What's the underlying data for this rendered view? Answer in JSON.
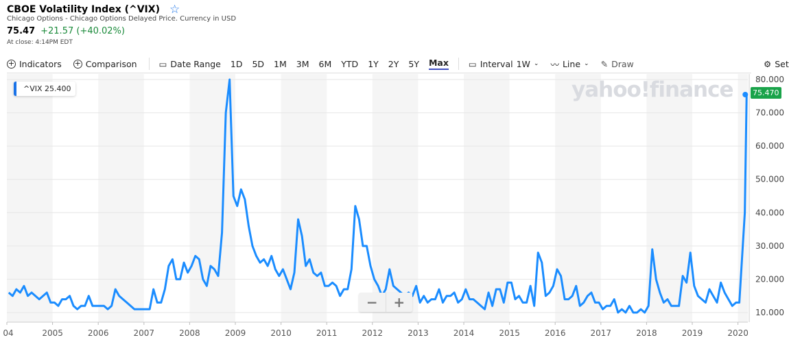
{
  "header": {
    "title": "CBOE Volatility Index (^VIX)",
    "subtitle": "Chicago Options - Chicago Options Delayed Price. Currency in USD",
    "price": "75.47",
    "change": "+21.57 (+40.02%)",
    "close_time": "At close: 4:14PM EDT"
  },
  "toolbar": {
    "indicators": "Indicators",
    "comparison": "Comparison",
    "date_range": "Date Range",
    "ranges": [
      "1D",
      "5D",
      "1M",
      "3M",
      "6M",
      "YTD",
      "1Y",
      "2Y",
      "5Y",
      "Max"
    ],
    "active_range": "Max",
    "interval_label": "Interval",
    "interval_value": "1W",
    "chart_type": "Line",
    "draw": "Draw",
    "settings": "Set"
  },
  "watermark": "yahoo!finance",
  "zoom": {
    "minus": "−",
    "plus": "+"
  },
  "colors": {
    "line": "#1a8cff",
    "up": "#1a8a3a",
    "badge": "#1aa34a",
    "shade": "#f5f5f5"
  },
  "chart_data": {
    "type": "line",
    "legend": "^VIX 25.400",
    "last_value_label": "75.470",
    "ylim": [
      10,
      80
    ],
    "yticks": [
      "10.000",
      "20.000",
      "30.000",
      "40.000",
      "50.000",
      "60.000",
      "70.000",
      "80.000"
    ],
    "xticks": [
      "04",
      "2005",
      "2006",
      "2007",
      "2008",
      "2009",
      "2010",
      "2011",
      "2012",
      "2013",
      "2014",
      "2015",
      "2016",
      "2017",
      "2018",
      "2019",
      "2020"
    ],
    "grid": true,
    "series": [
      {
        "values": {
          "2004": [
            16,
            15,
            17,
            16,
            18,
            15,
            16,
            15,
            14,
            15,
            16,
            13
          ],
          "2005": [
            13,
            12,
            14,
            14,
            15,
            12,
            11,
            12,
            12,
            15,
            12,
            12
          ],
          "2006": [
            12,
            12,
            11,
            12,
            17,
            15,
            14,
            13,
            12,
            11,
            11,
            11
          ],
          "2007": [
            11,
            11,
            17,
            13,
            13,
            17,
            24,
            26,
            20,
            20,
            25,
            22
          ],
          "2008": [
            24,
            27,
            26,
            20,
            18,
            24,
            23,
            21,
            34,
            70,
            80,
            45
          ],
          "2009": [
            42,
            47,
            44,
            36,
            30,
            27,
            25,
            26,
            24,
            27,
            23,
            21
          ],
          "2010": [
            23,
            20,
            17,
            22,
            38,
            33,
            24,
            26,
            22,
            21,
            22,
            18
          ],
          "2011": [
            18,
            19,
            18,
            15,
            17,
            17,
            23,
            42,
            38,
            30,
            30,
            24
          ],
          "2012": [
            20,
            18,
            15,
            17,
            23,
            18,
            17,
            16,
            15,
            16,
            15,
            18
          ],
          "2013": [
            13,
            15,
            13,
            14,
            14,
            17,
            13,
            15,
            15,
            16,
            13,
            14
          ],
          "2014": [
            17,
            14,
            14,
            13,
            12,
            11,
            16,
            12,
            17,
            17,
            13,
            19
          ],
          "2015": [
            19,
            14,
            15,
            13,
            13,
            18,
            12,
            28,
            25,
            15,
            16,
            18
          ],
          "2016": [
            23,
            21,
            14,
            14,
            15,
            18,
            12,
            13,
            15,
            16,
            13,
            13
          ],
          "2017": [
            11,
            12,
            12,
            14,
            10,
            11,
            10,
            12,
            10,
            10,
            11,
            10
          ],
          "2018": [
            12,
            29,
            20,
            16,
            13,
            14,
            12,
            12,
            12,
            21,
            19,
            28
          ],
          "2019": [
            18,
            15,
            14,
            13,
            17,
            15,
            13,
            19,
            16,
            14,
            12,
            13
          ],
          "2020": [
            13,
            40,
            75.47
          ]
        }
      }
    ]
  }
}
